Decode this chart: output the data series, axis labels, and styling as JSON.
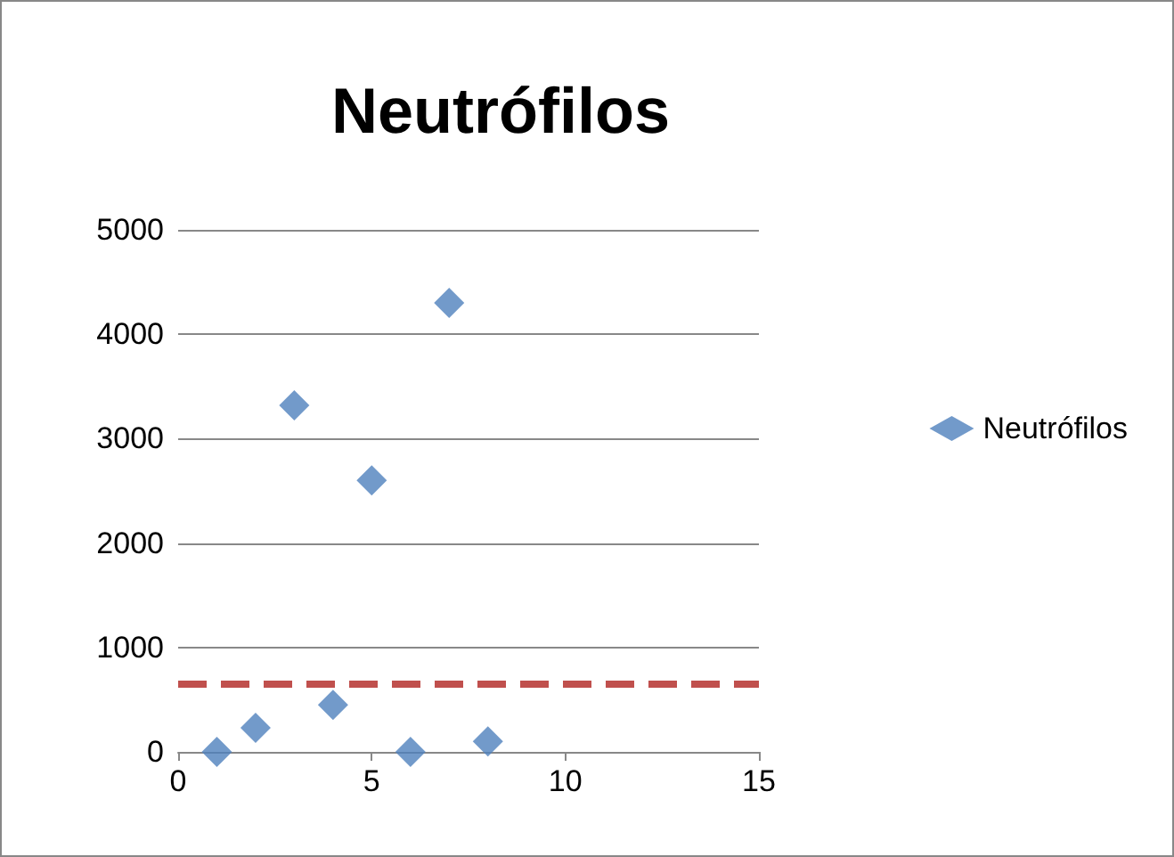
{
  "chart_data": {
    "type": "scatter",
    "title": "Neutrófilos",
    "x": [
      1,
      2,
      3,
      4,
      5,
      6,
      7,
      8
    ],
    "series": [
      {
        "name": "Neutrófilos",
        "color": "#4f81bd",
        "values": [
          0,
          230,
          3320,
          450,
          2600,
          0,
          4300,
          100
        ]
      }
    ],
    "xlim": [
      0,
      15
    ],
    "xticks": [
      0,
      5,
      10,
      15
    ],
    "ylim": [
      0,
      5000
    ],
    "yticks": [
      0,
      1000,
      2000,
      3000,
      4000,
      5000
    ],
    "grid": "y",
    "legend": "right",
    "marker": "diamond",
    "ref_lines": [
      {
        "axis": "y",
        "value": 650,
        "label": null,
        "color": "#c0504d",
        "line_style": "dashed"
      }
    ]
  }
}
